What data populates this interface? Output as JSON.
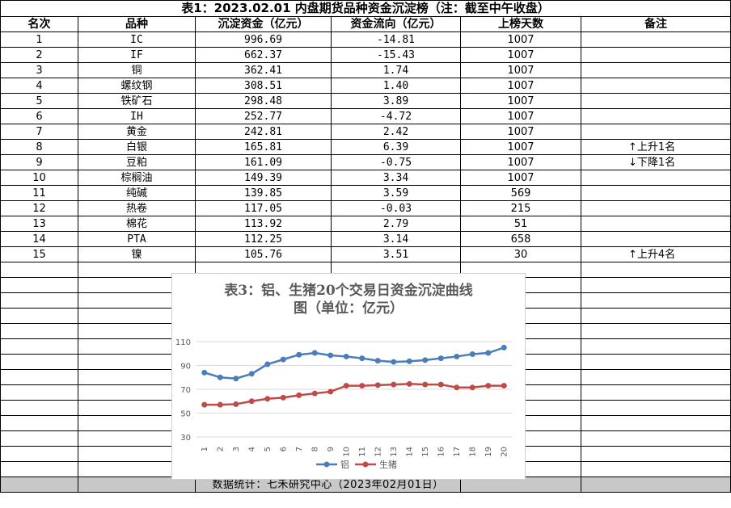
{
  "table": {
    "title": "表1：2023.02.01 内盘期货品种资金沉淀榜（注：截至中午收盘）",
    "headers": [
      "名次",
      "品种",
      "沉淀资金（亿元）",
      "资金流向（亿元）",
      "上榜天数",
      "备注"
    ],
    "rows": [
      [
        "1",
        "IC",
        "996.69",
        "-14.81",
        "1007",
        ""
      ],
      [
        "2",
        "IF",
        "662.37",
        "-15.43",
        "1007",
        ""
      ],
      [
        "3",
        "铜",
        "362.41",
        "1.74",
        "1007",
        ""
      ],
      [
        "4",
        "螺纹钢",
        "308.51",
        "1.40",
        "1007",
        ""
      ],
      [
        "5",
        "铁矿石",
        "298.48",
        "3.89",
        "1007",
        ""
      ],
      [
        "6",
        "IH",
        "252.77",
        "-4.72",
        "1007",
        ""
      ],
      [
        "7",
        "黄金",
        "242.81",
        "2.42",
        "1007",
        ""
      ],
      [
        "8",
        "白银",
        "165.81",
        "6.39",
        "1007",
        "↑上升1名"
      ],
      [
        "9",
        "豆粕",
        "161.09",
        "-0.75",
        "1007",
        "↓下降1名"
      ],
      [
        "10",
        "棕榈油",
        "149.39",
        "3.34",
        "1007",
        ""
      ],
      [
        "11",
        "纯碱",
        "139.85",
        "3.59",
        "569",
        ""
      ],
      [
        "12",
        "热卷",
        "117.05",
        "-0.03",
        "215",
        ""
      ],
      [
        "13",
        "棉花",
        "113.92",
        "2.79",
        "51",
        ""
      ],
      [
        "14",
        "PTA",
        "112.25",
        "3.14",
        "658",
        ""
      ],
      [
        "15",
        "镍",
        "105.76",
        "3.51",
        "30",
        "↑上升4名"
      ]
    ],
    "footer": "数据统计：七禾研究中心（2023年02月01日）"
  },
  "chart_data": {
    "type": "line",
    "title": "表3：铝、生猪20个交易日资金沉淀曲线图（单位：亿元）",
    "title_lines": [
      "表3：铝、生猪20个交易日资金沉淀曲线",
      "图（单位：亿元）"
    ],
    "x": [
      "1",
      "2",
      "3",
      "4",
      "5",
      "6",
      "7",
      "8",
      "9",
      "10",
      "11",
      "12",
      "13",
      "14",
      "15",
      "16",
      "17",
      "18",
      "19",
      "20"
    ],
    "ylim": [
      30,
      110
    ],
    "yticks": [
      "30",
      "50",
      "70",
      "90",
      "110"
    ],
    "grid": true,
    "legend_position": "bottom",
    "series": [
      {
        "name": "铝",
        "color": "#4a7ebb",
        "values": [
          84,
          80,
          79,
          83,
          91,
          95,
          99,
          100.5,
          98.5,
          97.5,
          96,
          94,
          93,
          93.5,
          94.5,
          96,
          97.5,
          99.5,
          100.5,
          105
        ]
      },
      {
        "name": "生猪",
        "color": "#be4b48",
        "values": [
          57,
          57,
          57.5,
          60,
          62,
          63,
          65,
          66.5,
          68,
          73,
          73,
          73.5,
          74,
          74.5,
          74,
          74,
          71.5,
          71.5,
          73,
          73
        ]
      }
    ],
    "colors": {
      "axis_text": "#595959",
      "gridline": "#d9d9d9",
      "title_text": "#595959"
    }
  }
}
